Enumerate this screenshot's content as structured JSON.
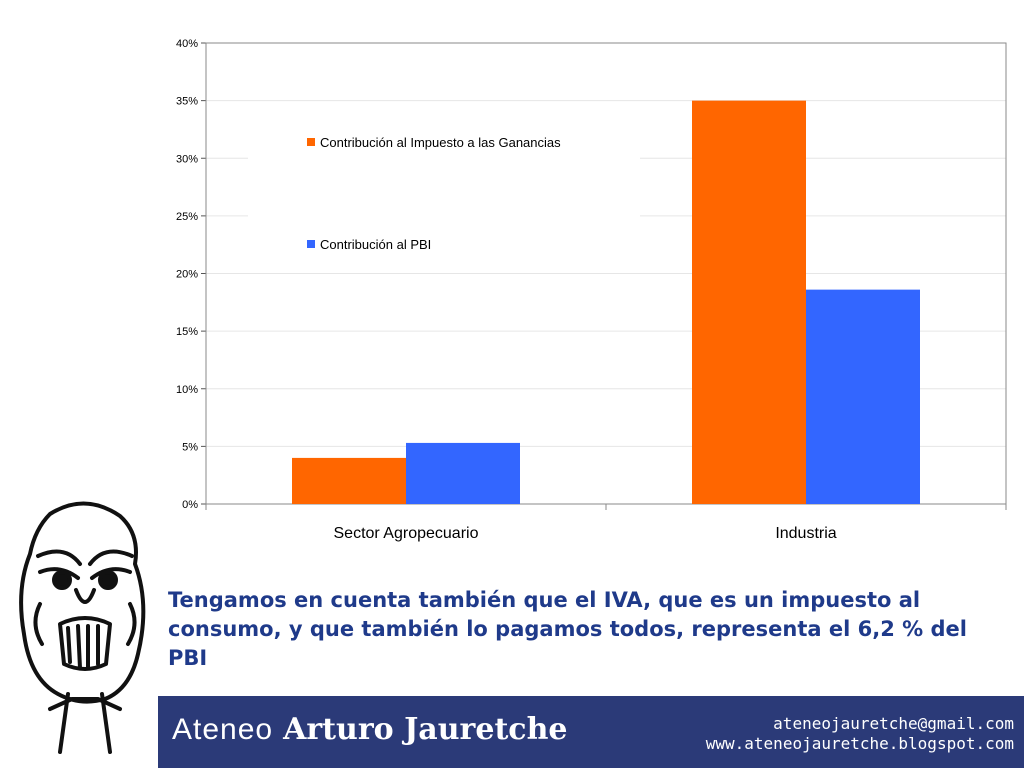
{
  "chart_data": {
    "type": "bar",
    "categories": [
      "Sector Agropecuario",
      "Industria"
    ],
    "series": [
      {
        "name": "Contribución al Impuesto a las Ganancias",
        "color": "#ff6600",
        "values": [
          4,
          35
        ]
      },
      {
        "name": "Contribución al PBI",
        "color": "#3366ff",
        "values": [
          5.3,
          18.6
        ]
      }
    ],
    "ylim": [
      0,
      40
    ],
    "yticks": [
      "0%",
      "5%",
      "10%",
      "15%",
      "20%",
      "25%",
      "30%",
      "35%",
      "40%"
    ],
    "ytick_values": [
      0,
      5,
      10,
      15,
      20,
      25,
      30,
      35,
      40
    ],
    "grid": true,
    "legend": "top-left, inside plot"
  },
  "slide": {
    "text": "Tengamos en cuenta también que el IVA, que es un impuesto al consumo, y que también lo pagamos todos, representa el 6,2 % del PBI"
  },
  "footer": {
    "brand_light": "Ateneo",
    "brand_bold": "Arturo Jauretche",
    "email": "ateneojauretche@gmail.com",
    "website": "www.ateneojauretche.blogspot.com"
  },
  "colors": {
    "footer": "#2b3a78",
    "text": "#1f3a8a"
  }
}
